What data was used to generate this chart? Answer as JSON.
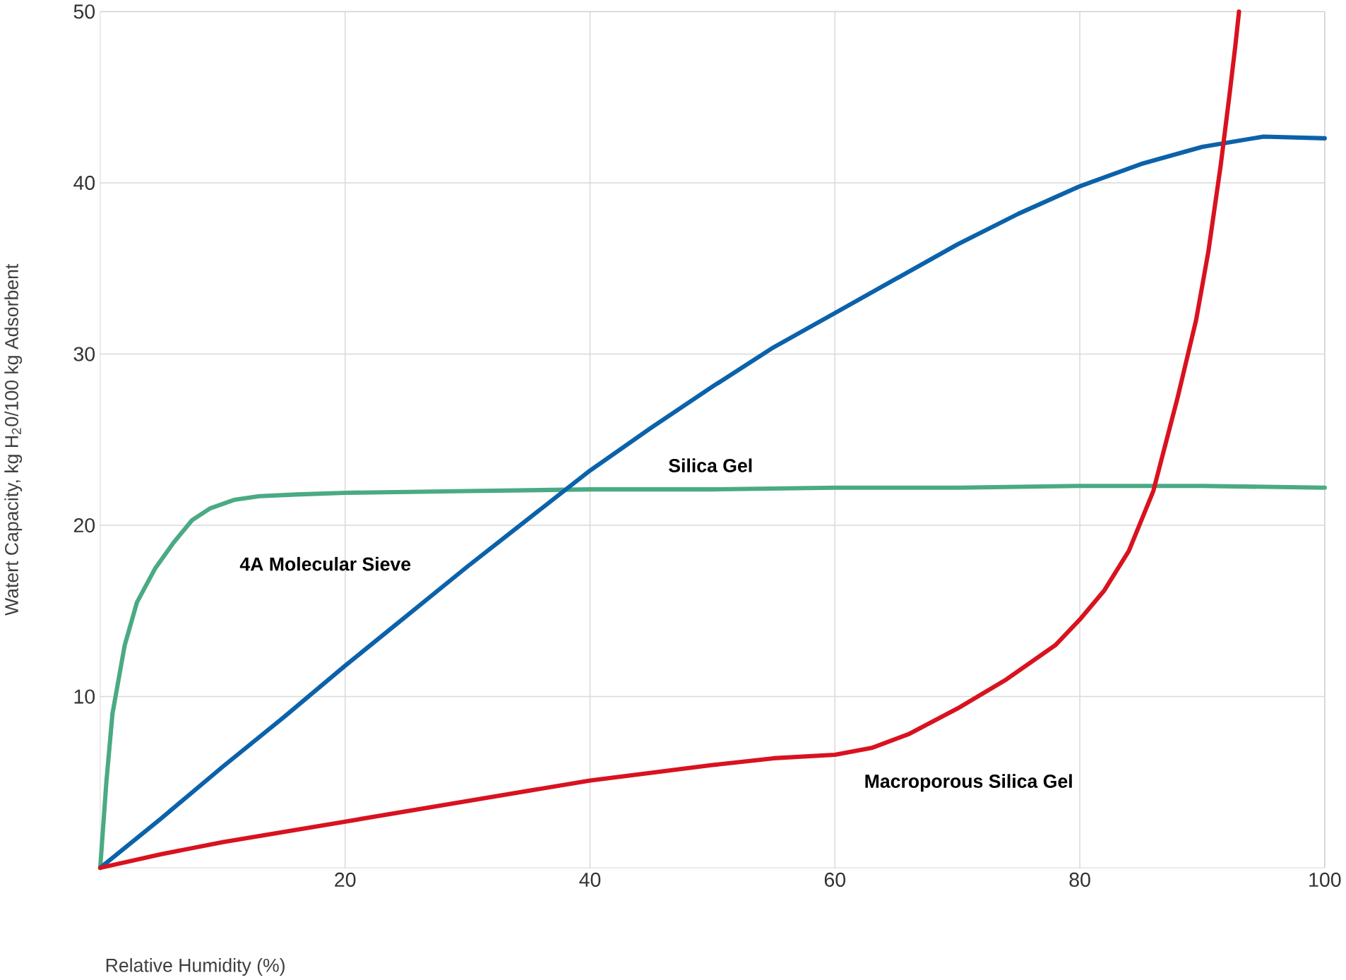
{
  "chart_data": {
    "type": "line",
    "xlabel": "Relative Humidity (%)",
    "ylabel": "Watert Capacity, kg H$_{2}$0/100 kg Adsorbent",
    "xlim": [
      0,
      100
    ],
    "ylim": [
      0,
      50
    ],
    "xticks": [
      20,
      40,
      60,
      80,
      100
    ],
    "yticks": [
      10,
      20,
      30,
      40,
      50
    ],
    "grid": true,
    "legend": false,
    "marker": "none",
    "line_style": "solid",
    "series": [
      {
        "name": "Silica Gel",
        "color": "#4aaa84",
        "x": [
          0,
          0.5,
          1,
          2,
          3,
          4.5,
          6,
          7.5,
          9,
          11,
          13,
          16,
          20,
          30,
          40,
          50,
          60,
          70,
          80,
          90,
          100
        ],
        "values": [
          0,
          5,
          9,
          13,
          15.5,
          17.5,
          19,
          20.3,
          21,
          21.5,
          21.7,
          21.8,
          21.9,
          22,
          22.1,
          22.1,
          22.2,
          22.2,
          22.3,
          22.3,
          22.2
        ]
      },
      {
        "name": "4A Molecular Sieve",
        "color": "#0b62aa",
        "x": [
          0,
          5,
          10,
          15,
          20,
          25,
          30,
          35,
          40,
          45,
          50,
          55,
          60,
          65,
          70,
          75,
          80,
          85,
          90,
          95,
          100
        ],
        "values": [
          0,
          2.9,
          5.9,
          8.8,
          11.8,
          14.7,
          17.6,
          20.4,
          23.2,
          25.7,
          28.1,
          30.4,
          32.4,
          34.4,
          36.4,
          38.2,
          39.8,
          41.1,
          42.1,
          42.7,
          42.6
        ]
      },
      {
        "name": "Macroporous Silica Gel",
        "color": "#d9121f",
        "x": [
          0,
          5,
          10,
          20,
          30,
          40,
          50,
          55,
          60,
          63,
          66,
          70,
          74,
          78,
          80,
          82,
          84,
          86,
          88,
          89.5,
          90.5,
          91.5,
          92.2,
          92.7,
          93
        ],
        "values": [
          0,
          0.8,
          1.5,
          2.7,
          3.9,
          5.1,
          6,
          6.4,
          6.6,
          7,
          7.8,
          9.3,
          11,
          13,
          14.5,
          16.2,
          18.5,
          22,
          27.5,
          32,
          36,
          41,
          45,
          48,
          50
        ]
      }
    ]
  }
}
